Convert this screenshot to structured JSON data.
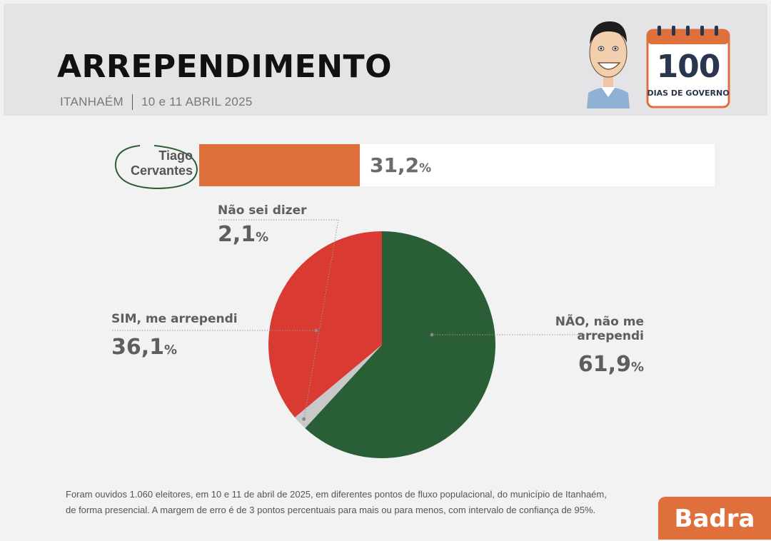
{
  "header": {
    "title": "ARREPENDIMENTO",
    "location": "ITANHAÉM",
    "date": "10 e 11 ABRIL 2025",
    "badge_number": "100",
    "badge_text": "DIAS DE GOVERNO"
  },
  "candidate": {
    "name_line1": "Tiago",
    "name_line2": "Cervantes",
    "value_number": "31,2",
    "value_unit": "%",
    "fraction": 0.312
  },
  "chart_data": {
    "type": "pie",
    "slices": [
      {
        "label": "NÃO, não me arrependi",
        "value": 61.9,
        "display": "61,9",
        "color": "#2a5e37"
      },
      {
        "label": "Não sei dizer",
        "value": 2.1,
        "display": "2,1",
        "color": "#c9c9c9"
      },
      {
        "label": "SIM, me arrependi",
        "value": 36.1,
        "display": "36,1",
        "color": "#d93a32"
      }
    ],
    "unit": "%"
  },
  "footnote": {
    "line1": "Foram ouvidos 1.060 eleitores, em 10 e 11 de abril de 2025, em diferentes pontos de fluxo populacional, do município de Itanhaém,",
    "line2": "de forma presencial. A margem de erro é de 3 pontos percentuais para mais ou para menos, com intervalo de confiança de 95%."
  },
  "brand": "Badra",
  "colors": {
    "accent": "#e0703b",
    "navy": "#2a3550",
    "green": "#2a5e37",
    "red": "#d93a32"
  }
}
